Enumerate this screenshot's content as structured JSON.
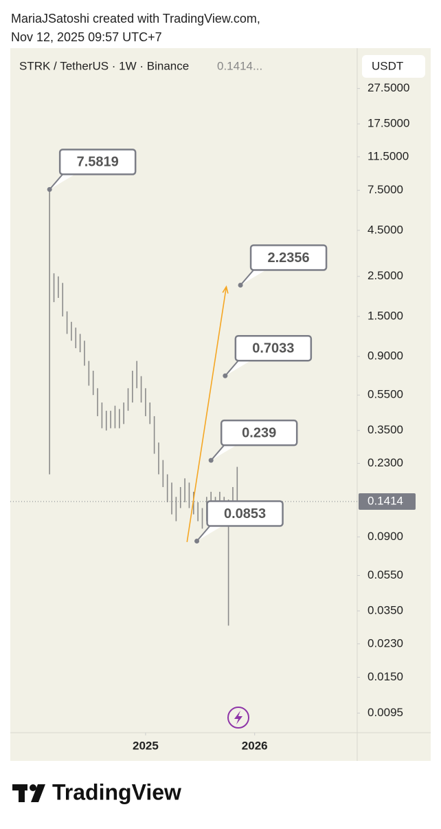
{
  "credit": {
    "line1": "MariaJSatoshi created with TradingView.com,",
    "line2": "Nov 12, 2025 09:57 UTC+7"
  },
  "footer": {
    "brand": "TradingView"
  },
  "chart_data": {
    "type": "range-bar",
    "title": "STRK / TetherUS · 1W · Binance",
    "header_price": "0.1414...",
    "currency": "USDT",
    "log_scale": true,
    "ylim": [
      0.0074,
      46
    ],
    "yticks": [
      {
        "value": 27.5,
        "label": "27.5000"
      },
      {
        "value": 17.5,
        "label": "17.5000"
      },
      {
        "value": 11.5,
        "label": "11.5000"
      },
      {
        "value": 7.5,
        "label": "7.5000"
      },
      {
        "value": 4.5,
        "label": "4.5000"
      },
      {
        "value": 2.5,
        "label": "2.5000"
      },
      {
        "value": 1.5,
        "label": "1.5000"
      },
      {
        "value": 0.9,
        "label": "0.9000"
      },
      {
        "value": 0.55,
        "label": "0.5500"
      },
      {
        "value": 0.35,
        "label": "0.3500"
      },
      {
        "value": 0.23,
        "label": "0.2300"
      },
      {
        "value": 0.09,
        "label": "0.0900"
      },
      {
        "value": 0.055,
        "label": "0.0550"
      },
      {
        "value": 0.035,
        "label": "0.0350"
      },
      {
        "value": 0.023,
        "label": "0.0230"
      },
      {
        "value": 0.015,
        "label": "0.0150"
      },
      {
        "value": 0.0095,
        "label": "0.0095"
      }
    ],
    "xlim": [
      2023.76,
      2026.94
    ],
    "xticks": [
      2025,
      2026
    ],
    "series": [
      {
        "color": "#8a8a8a",
        "x": [
          2024.12,
          2024.16,
          2024.2,
          2024.24,
          2024.28,
          2024.32,
          2024.36,
          2024.4,
          2024.44,
          2024.48,
          2024.52,
          2024.56,
          2024.6,
          2024.64,
          2024.68,
          2024.72,
          2024.76,
          2024.8,
          2024.84,
          2024.88,
          2024.92,
          2024.96,
          2025.0,
          2025.04,
          2025.08,
          2025.12,
          2025.16,
          2025.2,
          2025.24,
          2025.28,
          2025.32,
          2025.36,
          2025.4,
          2025.44,
          2025.48,
          2025.52,
          2025.56,
          2025.6,
          2025.64,
          2025.68,
          2025.72,
          2025.76,
          2025.8,
          2025.84
        ],
        "high": [
          7.58,
          2.6,
          2.5,
          2.3,
          1.6,
          1.4,
          1.3,
          1.2,
          1.1,
          0.85,
          0.75,
          0.6,
          0.5,
          0.45,
          0.45,
          0.48,
          0.46,
          0.5,
          0.6,
          0.75,
          0.85,
          0.7,
          0.6,
          0.5,
          0.42,
          0.3,
          0.24,
          0.2,
          0.18,
          0.15,
          0.17,
          0.19,
          0.18,
          0.16,
          0.14,
          0.13,
          0.15,
          0.16,
          0.15,
          0.16,
          0.15,
          0.145,
          0.17,
          0.22
        ],
        "low": [
          0.2,
          1.8,
          1.9,
          1.5,
          1.2,
          1.1,
          1.0,
          0.95,
          0.8,
          0.62,
          0.55,
          0.42,
          0.36,
          0.35,
          0.36,
          0.36,
          0.36,
          0.38,
          0.45,
          0.5,
          0.6,
          0.5,
          0.42,
          0.38,
          0.26,
          0.2,
          0.17,
          0.14,
          0.12,
          0.11,
          0.13,
          0.14,
          0.13,
          0.12,
          0.11,
          0.1,
          0.11,
          0.12,
          0.12,
          0.12,
          0.11,
          0.029,
          0.12,
          0.11
        ]
      }
    ],
    "last_price": {
      "value": 0.1414,
      "label": "0.1414",
      "color": "#7b7d86"
    },
    "trend_line": {
      "x": [
        2025.38,
        2025.74
      ],
      "values": [
        0.0843,
        2.19
      ],
      "color": "#f5a623"
    },
    "annotations": [
      {
        "x": 2024.12,
        "value": 7.5819
      },
      {
        "x": 2025.87,
        "value": 2.2356
      },
      {
        "x": 2025.73,
        "value": 0.7033
      },
      {
        "x": 2025.6,
        "value": 0.239
      },
      {
        "x": 2025.47,
        "value": 0.0853
      }
    ]
  }
}
